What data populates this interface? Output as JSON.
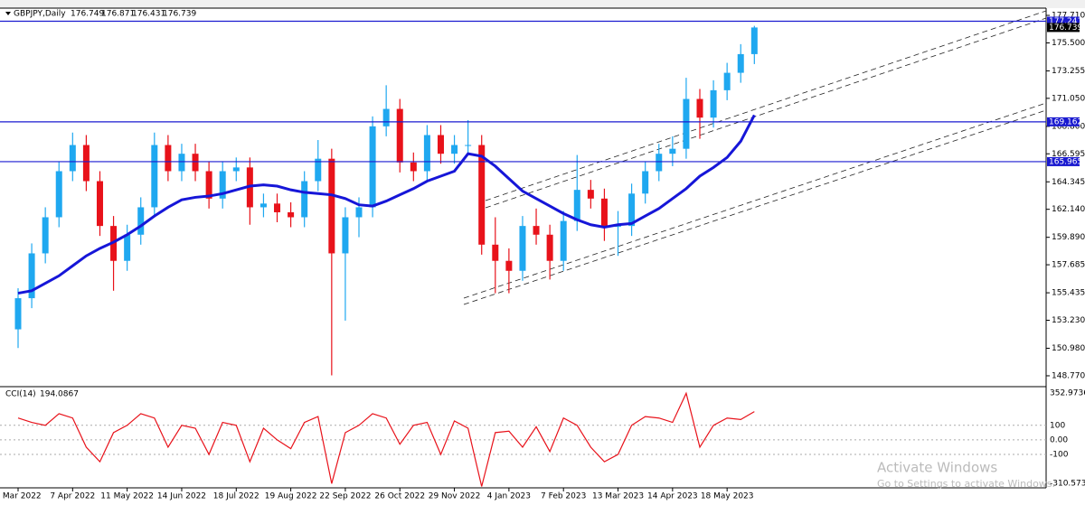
{
  "header": {
    "symbol": "GBPJPY,Daily",
    "ohlc": [
      176.749,
      176.871,
      176.431,
      176.739
    ]
  },
  "watermark": {
    "title": "Activate Windows",
    "text": "Go to Settings to activate Windows."
  },
  "chart_data": [
    {
      "type": "candlestick",
      "up_color": "#1fa8f0",
      "down_color": "#e8121a",
      "open": [
        152.5,
        155.0,
        158.6,
        161.5,
        165.2,
        167.3,
        164.4,
        160.8,
        158.0,
        160.1,
        162.3,
        167.3,
        165.2,
        166.6,
        165.2,
        163.0,
        165.2,
        165.5,
        162.3,
        162.6,
        161.9,
        161.5,
        164.4,
        166.2,
        158.6,
        161.5,
        162.3,
        168.8,
        170.2,
        165.9,
        165.2,
        168.1,
        166.6,
        167.3,
        167.3,
        159.3,
        158.0,
        157.2,
        160.8,
        160.1,
        158.0,
        161.2,
        163.7,
        163.0,
        160.8,
        160.8,
        163.4,
        165.2,
        166.6,
        167.0,
        171.0,
        169.5,
        171.7,
        173.1,
        174.6
      ],
      "high": [
        155.8,
        159.4,
        162.3,
        166.0,
        168.3,
        168.1,
        165.2,
        161.6,
        160.9,
        163.1,
        168.3,
        168.1,
        167.4,
        167.4,
        166.0,
        166.0,
        166.3,
        166.3,
        163.4,
        163.4,
        162.7,
        165.2,
        167.7,
        167.0,
        162.3,
        163.1,
        169.6,
        172.1,
        171.0,
        166.7,
        168.9,
        168.9,
        168.1,
        169.3,
        168.1,
        161.5,
        159.0,
        161.6,
        162.2,
        160.9,
        162.0,
        166.5,
        164.5,
        163.8,
        162.0,
        164.2,
        166.0,
        167.4,
        168.0,
        172.7,
        171.8,
        172.5,
        173.9,
        175.4,
        176.871
      ],
      "low": [
        151.0,
        154.2,
        157.8,
        160.7,
        164.4,
        163.6,
        160.0,
        155.6,
        157.2,
        159.3,
        161.5,
        164.4,
        164.4,
        164.4,
        162.2,
        162.2,
        164.4,
        160.9,
        161.5,
        161.1,
        160.7,
        160.7,
        163.6,
        148.8,
        153.2,
        159.9,
        161.5,
        168.0,
        165.1,
        164.4,
        164.4,
        165.8,
        165.8,
        166.5,
        158.5,
        155.4,
        155.4,
        156.4,
        159.3,
        156.5,
        157.2,
        160.4,
        162.2,
        159.6,
        158.4,
        160.0,
        162.6,
        164.4,
        165.6,
        166.2,
        167.8,
        168.7,
        170.9,
        172.3,
        173.8
      ],
      "close": [
        155.0,
        158.6,
        161.5,
        165.2,
        167.3,
        164.4,
        160.8,
        158.0,
        160.1,
        162.3,
        167.3,
        165.2,
        166.6,
        165.2,
        163.0,
        165.2,
        165.5,
        162.3,
        162.6,
        161.9,
        161.5,
        164.4,
        166.2,
        158.6,
        161.5,
        162.3,
        168.8,
        170.2,
        165.9,
        165.2,
        168.1,
        166.6,
        167.3,
        167.3,
        159.3,
        158.0,
        157.2,
        160.8,
        160.1,
        158.0,
        161.2,
        163.7,
        163.0,
        160.8,
        160.8,
        163.4,
        165.2,
        166.6,
        167.0,
        171.0,
        169.5,
        171.7,
        173.1,
        174.6,
        176.739
      ],
      "series": [
        {
          "color": "#1616d8",
          "values": [
            155.4,
            155.6,
            156.2,
            156.8,
            157.6,
            158.4,
            159.0,
            159.5,
            160.1,
            160.8,
            161.6,
            162.3,
            162.9,
            163.1,
            163.2,
            163.4,
            163.7,
            164.0,
            164.1,
            164.0,
            163.7,
            163.5,
            163.4,
            163.3,
            163.0,
            162.5,
            162.4,
            162.8,
            163.3,
            163.8,
            164.4,
            164.8,
            165.2,
            166.6,
            166.4,
            165.6,
            164.6,
            163.6,
            163.0,
            162.4,
            161.8,
            161.3,
            160.9,
            160.7,
            160.9,
            161.0,
            161.6,
            162.2,
            163.0,
            163.8,
            164.8,
            165.5,
            166.3,
            167.6,
            169.7
          ]
        }
      ],
      "hlines": [
        177.241,
        169.162,
        165.965
      ],
      "hline_color": "#1a1ad0",
      "last_price": 176.739,
      "ylim": [
        147.97,
        178.22
      ],
      "yticks": [
        {
          "value": 177.71,
          "label": "177.710"
        },
        {
          "value": 175.5,
          "label": "175.500"
        },
        173.255,
        {
          "value": 171.05,
          "label": "171.050"
        },
        {
          "value": 168.8,
          "label": "168.800"
        },
        166.595,
        164.345,
        {
          "value": 162.14,
          "label": "162.140"
        },
        {
          "value": 159.89,
          "label": "159.890"
        },
        157.685,
        155.435,
        {
          "value": 153.23,
          "label": "153.230"
        },
        {
          "value": 150.98,
          "label": "150.980"
        },
        {
          "value": 148.77,
          "label": "148.770"
        }
      ]
    },
    {
      "type": "line",
      "title": "CCI(14)",
      "color": "#e8121a",
      "categories": [
        "2 Mar 2022",
        null,
        null,
        null,
        "7 Apr 2022",
        null,
        null,
        null,
        "11 May 2022",
        null,
        null,
        null,
        "14 Jun 2022",
        null,
        null,
        null,
        "18 Jul 2022",
        null,
        null,
        null,
        "19 Aug 2022",
        null,
        null,
        null,
        "22 Sep 2022",
        null,
        null,
        null,
        "26 Oct 2022",
        null,
        null,
        null,
        "29 Nov 2022",
        null,
        null,
        null,
        "4 Jan 2023",
        null,
        null,
        null,
        "7 Feb 2023",
        null,
        null,
        null,
        "13 Mar 2023",
        null,
        null,
        null,
        "14 Apr 2023",
        null,
        null,
        null,
        "18 May 2023",
        null,
        null
      ],
      "values": [
        150,
        120,
        100,
        180,
        150,
        -50,
        -150,
        50,
        100,
        180,
        150,
        -50,
        100,
        80,
        -100,
        120,
        100,
        -150,
        80,
        0,
        -60,
        120,
        160,
        -300,
        50,
        100,
        180,
        150,
        -30,
        100,
        120,
        -100,
        130,
        80,
        -320,
        50,
        60,
        -50,
        90,
        -80,
        150,
        100,
        -50,
        -150,
        -100,
        100,
        160,
        150,
        120,
        320,
        -50,
        100,
        150,
        140,
        194.0867
      ],
      "ylim": [
        -310.5736,
        352.9736
      ],
      "yticks": [
        352.9736,
        100,
        {
          "value": 0,
          "label": "0.00"
        },
        -100,
        -310.5736
      ]
    }
  ]
}
